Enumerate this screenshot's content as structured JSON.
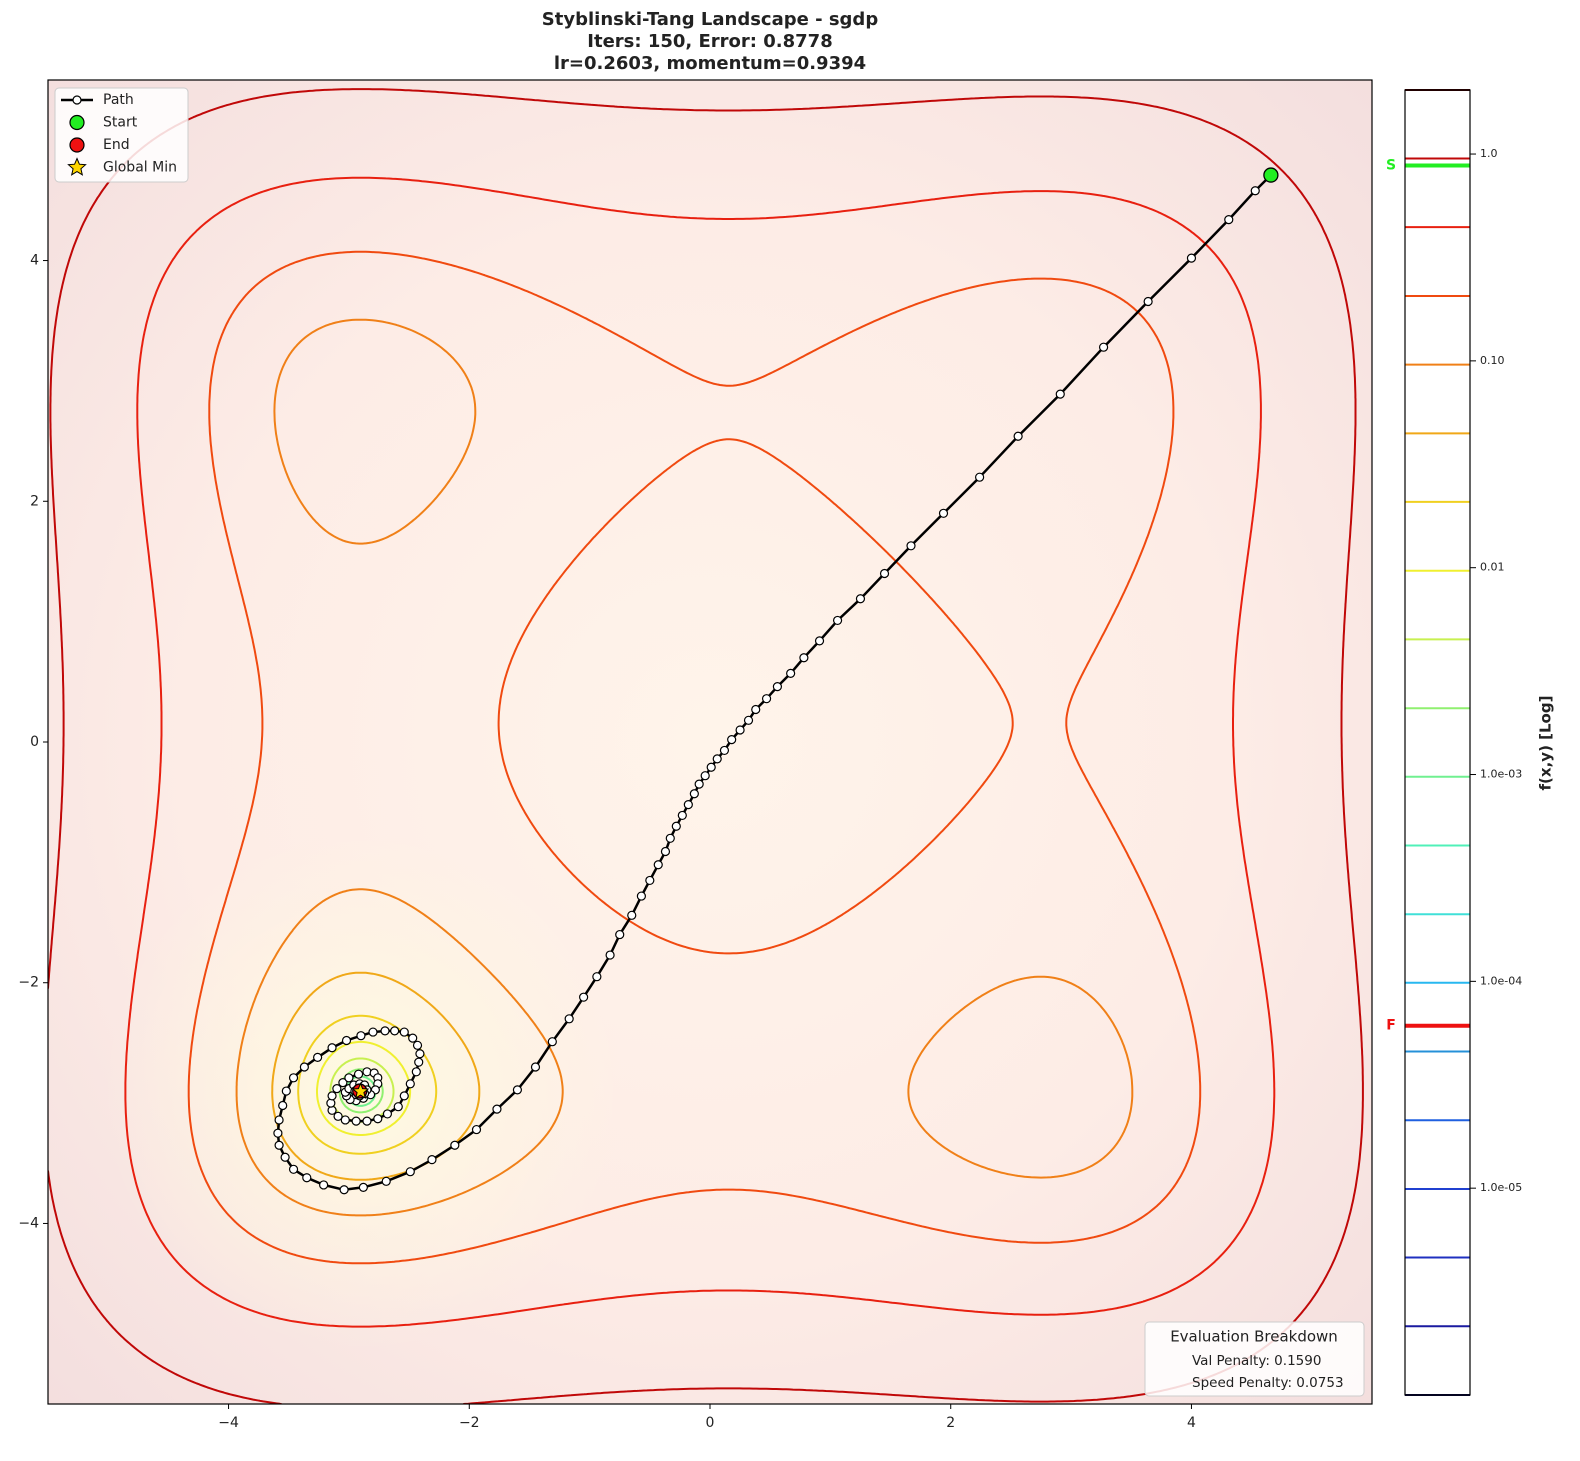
{
  "chart_data": {
    "type": "contour",
    "title": "Styblinski-Tang Landscape - sgdp",
    "subtitle": [
      "Iters: 150, Error: 0.8778",
      "lr=0.2603, momentum=0.9394"
    ],
    "xlim": [
      -5.5,
      5.5
    ],
    "ylim": [
      -5.5,
      5.5
    ],
    "xticks": [
      {
        "value": -4,
        "label": "−4"
      },
      {
        "value": -2,
        "label": "−2"
      },
      0,
      2,
      4
    ],
    "yticks": [
      {
        "value": -4,
        "label": "−4"
      },
      {
        "value": -2,
        "label": "−2"
      },
      0,
      2,
      4
    ],
    "legend": "upper left",
    "path": {
      "name": "Path",
      "color": "#000000",
      "x": [
        4.66,
        4.53,
        4.31,
        4.0,
        3.64,
        3.27,
        2.91,
        2.56,
        2.24,
        1.94,
        1.67,
        1.45,
        1.25,
        1.06,
        0.91,
        0.78,
        0.67,
        0.56,
        0.47,
        0.38,
        0.32,
        0.25,
        0.18,
        0.12,
        0.06,
        0.01,
        -0.04,
        -0.09,
        -0.13,
        -0.18,
        -0.23,
        -0.28,
        -0.33,
        -0.37,
        -0.43,
        -0.5,
        -0.57,
        -0.65,
        -0.75,
        -0.83,
        -0.94,
        -1.05,
        -1.17,
        -1.31,
        -1.45,
        -1.6,
        -1.77,
        -1.94,
        -2.12,
        -2.31,
        -2.49,
        -2.69,
        -2.88,
        -3.04,
        -3.21,
        -3.35,
        -3.46,
        -3.53,
        -3.58,
        -3.59,
        -3.58,
        -3.55,
        -3.52,
        -3.46,
        -3.37,
        -3.26,
        -3.14,
        -3.02,
        -2.9,
        -2.8,
        -2.7,
        -2.62,
        -2.54,
        -2.47,
        -2.43,
        -2.41,
        -2.42,
        -2.44,
        -2.49,
        -2.54,
        -2.59,
        -2.68,
        -2.76,
        -2.85,
        -2.94,
        -3.03,
        -3.09,
        -3.14,
        -3.15,
        -3.14,
        -3.1,
        -3.05,
        -3.0,
        -2.92,
        -2.85,
        -2.79,
        -2.76,
        -2.76,
        -2.78,
        -2.82,
        -2.88,
        -2.94,
        -2.99,
        -3.02,
        -3.03,
        -3.0,
        -2.96,
        -2.91,
        -2.87,
        -2.85,
        -2.87,
        -2.91,
        -2.94,
        -2.95,
        -2.93,
        -2.89,
        -2.89,
        -2.92,
        -2.91
      ],
      "y": [
        4.71,
        4.58,
        4.34,
        4.02,
        3.66,
        3.28,
        2.89,
        2.54,
        2.2,
        1.9,
        1.63,
        1.4,
        1.19,
        1.01,
        0.84,
        0.7,
        0.57,
        0.46,
        0.36,
        0.27,
        0.18,
        0.1,
        0.02,
        -0.07,
        -0.14,
        -0.21,
        -0.28,
        -0.35,
        -0.43,
        -0.52,
        -0.61,
        -0.7,
        -0.8,
        -0.91,
        -1.02,
        -1.15,
        -1.28,
        -1.44,
        -1.6,
        -1.77,
        -1.95,
        -2.12,
        -2.3,
        -2.49,
        -2.7,
        -2.89,
        -3.05,
        -3.22,
        -3.35,
        -3.47,
        -3.57,
        -3.65,
        -3.7,
        -3.72,
        -3.68,
        -3.62,
        -3.55,
        -3.45,
        -3.35,
        -3.25,
        -3.14,
        -3.02,
        -2.9,
        -2.79,
        -2.7,
        -2.62,
        -2.54,
        -2.48,
        -2.44,
        -2.41,
        -2.4,
        -2.4,
        -2.41,
        -2.46,
        -2.52,
        -2.59,
        -2.66,
        -2.74,
        -2.84,
        -2.94,
        -3.03,
        -3.09,
        -3.13,
        -3.15,
        -3.15,
        -3.14,
        -3.11,
        -3.06,
        -3.0,
        -2.94,
        -2.88,
        -2.83,
        -2.79,
        -2.76,
        -2.74,
        -2.75,
        -2.79,
        -2.84,
        -2.89,
        -2.93,
        -2.96,
        -2.98,
        -2.97,
        -2.94,
        -2.91,
        -2.88,
        -2.85,
        -2.84,
        -2.85,
        -2.89,
        -2.92,
        -2.94,
        -2.93,
        -2.9,
        -2.89,
        -2.89,
        -2.92,
        -2.92,
        -2.9
      ]
    },
    "start": {
      "name": "Start",
      "x": 4.66,
      "y": 4.71,
      "color": "#22ee22"
    },
    "end": {
      "name": "End",
      "x": -2.91,
      "y": -2.9,
      "color": "#ee1111"
    },
    "global_min": {
      "name": "Global Min",
      "x": -2.9035,
      "y": -2.9035,
      "color": "#ffd700"
    },
    "colorbar": {
      "label": "f(x,y) [Log]",
      "scale": "log",
      "lim": [
        1e-06,
        2.04
      ],
      "ticks": [
        {
          "value": 1,
          "label": "1.0"
        },
        {
          "value": 0.1,
          "label": "0.10"
        },
        0.01,
        {
          "value": 0.001,
          "label": "1.0e-03"
        },
        {
          "value": 0.0001,
          "label": "1.0e-04"
        },
        {
          "value": 1e-05,
          "label": "1.0e-05"
        }
      ],
      "levels": [
        1e-06,
        2.15e-06,
        4.62e-06,
        9.91e-06,
        2.13e-05,
        4.58e-05,
        9.84e-05,
        0.000211,
        0.000454,
        0.000975,
        0.00209,
        0.0045,
        0.00966,
        0.0208,
        0.0446,
        0.0959,
        0.206,
        0.443,
        0.951,
        2.04
      ],
      "level_colors": [
        "#0a0a50",
        "#1a1aa0",
        "#1f30c0",
        "#2040d0",
        "#2060e0",
        "#2590d8",
        "#28b8f0",
        "#40e0d8",
        "#50f0b8",
        "#70f090",
        "#90f070",
        "#c8f050",
        "#f0f030",
        "#f0d020",
        "#f0a818",
        "#f08018",
        "#f04a10",
        "#e82010",
        "#c00808",
        "#500000"
      ],
      "markers": [
        {
          "label": "S",
          "value": 0.88,
          "color": "#22ee22"
        },
        {
          "label": "F",
          "value": 6.1e-05,
          "color": "#ee1111"
        }
      ]
    },
    "annotation": {
      "title": "Evaluation Breakdown",
      "lines": [
        "Val Penalty: 0.1590",
        "Speed Penalty: 0.0753"
      ]
    }
  }
}
